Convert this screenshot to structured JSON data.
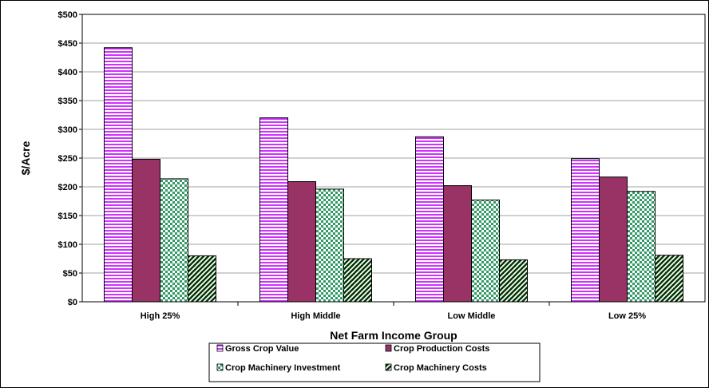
{
  "chart_data": {
    "type": "bar",
    "title": "",
    "xlabel": "Net Farm Income Group",
    "ylabel": "$/Acre",
    "ylim": [
      0,
      500
    ],
    "ytick_step": 50,
    "ytick_labels": [
      "$0",
      "$50",
      "$100",
      "$150",
      "$200",
      "$250",
      "$300",
      "$350",
      "$400",
      "$450",
      "$500"
    ],
    "grid": true,
    "legend_position": "bottom",
    "categories": [
      "High 25%",
      "High Middle",
      "Low Middle",
      "Low 25%"
    ],
    "series": [
      {
        "name": "Gross Crop Value",
        "values": [
          442,
          320,
          287,
          249
        ],
        "color": "#cc33ff",
        "pattern": "horizontal-stripes"
      },
      {
        "name": "Crop Production Costs",
        "values": [
          248,
          209,
          202,
          217
        ],
        "color": "#993366",
        "pattern": "solid"
      },
      {
        "name": "Crop Machinery Investment",
        "values": [
          214,
          196,
          177,
          192
        ],
        "color": "#339966",
        "pattern": "checker"
      },
      {
        "name": "Crop Machinery Costs",
        "values": [
          80,
          75,
          73,
          81
        ],
        "color": "#003300",
        "pattern": "diagonal-stripes"
      }
    ]
  }
}
